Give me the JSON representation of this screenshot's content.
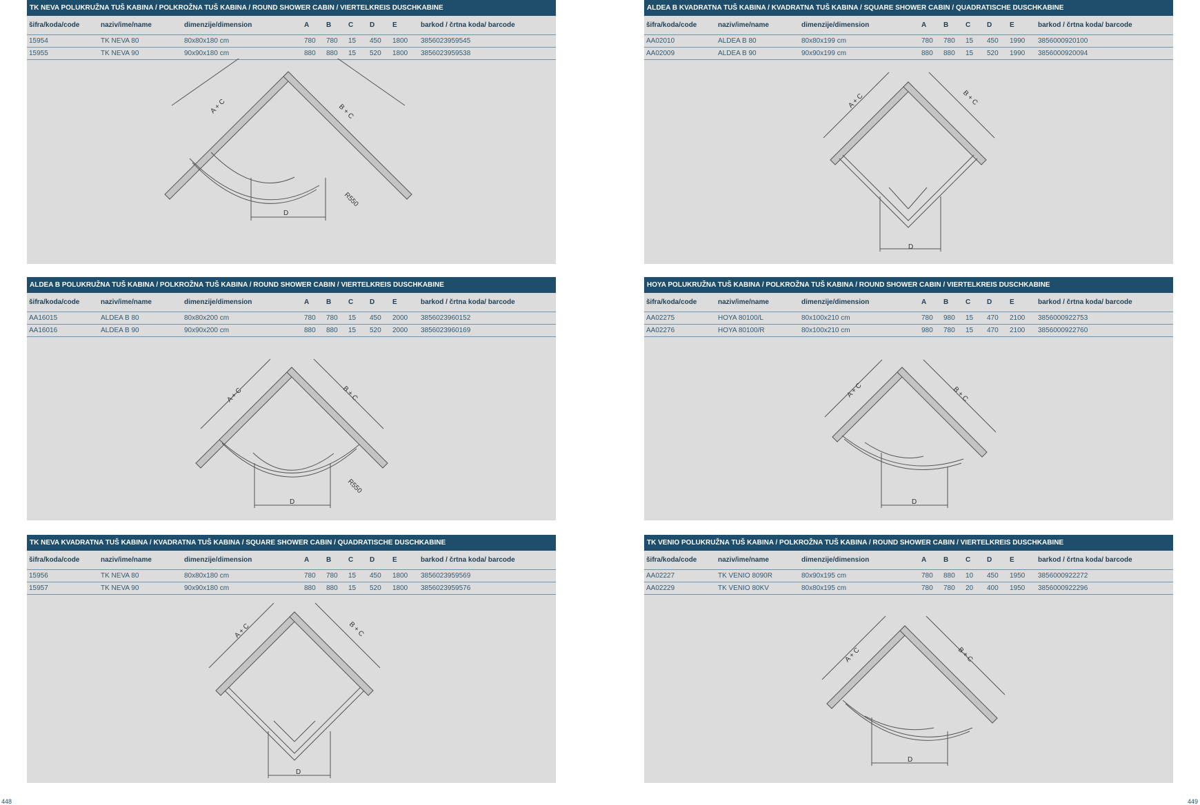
{
  "columns": {
    "code": "šifra/koda/code",
    "name": "naziv/ime/name",
    "dimension": "dimenzije/dimension",
    "a": "A",
    "b": "B",
    "c": "C",
    "d": "D",
    "e": "E",
    "barcode": "barkod / črtna koda/ barcode"
  },
  "labels": {
    "ac": "A + C",
    "bc": "B + C",
    "d": "D",
    "r550": "R550"
  },
  "pages": {
    "left": "448",
    "right": "449"
  },
  "panels": [
    {
      "title": "TK NEVA POLUKRUŽNA TUŠ KABINA / POLKROŽNA TUŠ KABINA / ROUND SHOWER CABIN / VIERTELKREIS DUSCHKABINE",
      "rows": [
        {
          "code": "15954",
          "name": "TK NEVA 80",
          "dimension": "80x80x180 cm",
          "a": "780",
          "b": "780",
          "c": "15",
          "d": "450",
          "e": "1800",
          "barcode": "3856023959545"
        },
        {
          "code": "15955",
          "name": "TK NEVA 90",
          "dimension": "90x90x180 cm",
          "a": "880",
          "b": "880",
          "c": "15",
          "d": "520",
          "e": "1800",
          "barcode": "3856023959538"
        }
      ]
    },
    {
      "title": "ALDEA B KVADRATNA TUŠ KABINA / KVADRATNA TUŠ KABINA / SQUARE SHOWER CABIN / QUADRATISCHE DUSCHKABINE",
      "rows": [
        {
          "code": "AA02010",
          "name": "ALDEA B 80",
          "dimension": "80x80x199 cm",
          "a": "780",
          "b": "780",
          "c": "15",
          "d": "450",
          "e": "1990",
          "barcode": "3856000920100"
        },
        {
          "code": "AA02009",
          "name": "ALDEA B 90",
          "dimension": "90x90x199 cm",
          "a": "880",
          "b": "880",
          "c": "15",
          "d": "520",
          "e": "1990",
          "barcode": "3856000920094"
        }
      ]
    },
    {
      "title": "ALDEA B POLUKRUŽNA TUŠ KABINA / POLKROŽNA TUŠ KABINA / ROUND SHOWER CABIN / VIERTELKREIS DUSCHKABINE",
      "rows": [
        {
          "code": "AA16015",
          "name": "ALDEA B 80",
          "dimension": "80x80x200 cm",
          "a": "780",
          "b": "780",
          "c": "15",
          "d": "450",
          "e": "2000",
          "barcode": "3856023960152"
        },
        {
          "code": "AA16016",
          "name": "ALDEA B 90",
          "dimension": "90x90x200 cm",
          "a": "880",
          "b": "880",
          "c": "15",
          "d": "520",
          "e": "2000",
          "barcode": "3856023960169"
        }
      ]
    },
    {
      "title": "HOYA POLUKRUŽNA TUŠ KABINA / POLKROŽNA TUŠ KABINA / ROUND SHOWER CABIN / VIERTELKREIS DUSCHKABINE",
      "rows": [
        {
          "code": "AA02275",
          "name": "HOYA 80100/L",
          "dimension": "80x100x210 cm",
          "a": "780",
          "b": "980",
          "c": "15",
          "d": "470",
          "e": "2100",
          "barcode": "3856000922753"
        },
        {
          "code": "AA02276",
          "name": "HOYA 80100/R",
          "dimension": "80x100x210 cm",
          "a": "980",
          "b": "780",
          "c": "15",
          "d": "470",
          "e": "2100",
          "barcode": "3856000922760"
        }
      ]
    },
    {
      "title": "TK NEVA KVADRATNA TUŠ KABINA / KVADRATNA TUŠ KABINA / SQUARE SHOWER CABIN / QUADRATISCHE DUSCHKABINE",
      "rows": [
        {
          "code": "15956",
          "name": "TK NEVA 80",
          "dimension": "80x80x180 cm",
          "a": "780",
          "b": "780",
          "c": "15",
          "d": "450",
          "e": "1800",
          "barcode": "3856023959569"
        },
        {
          "code": "15957",
          "name": "TK NEVA 90",
          "dimension": "90x90x180 cm",
          "a": "880",
          "b": "880",
          "c": "15",
          "d": "520",
          "e": "1800",
          "barcode": "3856023959576"
        }
      ]
    },
    {
      "title": "TK VENIO POLUKRUŽNA TUŠ KABINA / POLKROŽNA TUŠ KABINA / ROUND SHOWER CABIN / VIERTELKREIS DUSCHKABINE",
      "rows": [
        {
          "code": "AA02227",
          "name": "TK VENIO 8090R",
          "dimension": "80x90x195 cm",
          "a": "780",
          "b": "880",
          "c": "10",
          "d": "450",
          "e": "1950",
          "barcode": "3856000922272"
        },
        {
          "code": "AA02229",
          "name": "TK VENIO 80KV",
          "dimension": "80x80x195 cm",
          "a": "780",
          "b": "780",
          "c": "20",
          "d": "400",
          "e": "1950",
          "barcode": "3856000922296"
        }
      ]
    }
  ]
}
